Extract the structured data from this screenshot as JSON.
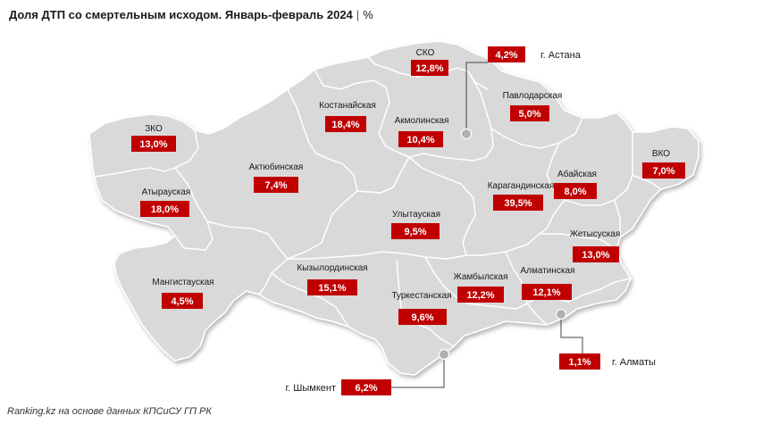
{
  "title": {
    "main": "Доля ДТП со смертельным исходом. Январь-февраль 2024",
    "separator": "|",
    "unit": "%"
  },
  "source": "Ranking.kz на основе данных КПСиСУ ГП РК",
  "colors": {
    "value_box": "#c00000",
    "map_fill": "#d9d9d9",
    "border": "#ffffff"
  },
  "regions": [
    {
      "name": "СКО",
      "value": "12,8%"
    },
    {
      "name": "ЗКО",
      "value": "13,0%"
    },
    {
      "name": "Костанайская",
      "value": "18,4%"
    },
    {
      "name": "Акмолинская",
      "value": "10,4%"
    },
    {
      "name": "Павлодарская",
      "value": "5,0%"
    },
    {
      "name": "ВКО",
      "value": "7,0%"
    },
    {
      "name": "Актюбинская",
      "value": "7,4%"
    },
    {
      "name": "Атырауская",
      "value": "18,0%"
    },
    {
      "name": "Карагандинская",
      "value": "39,5%"
    },
    {
      "name": "Абайская",
      "value": "8,0%"
    },
    {
      "name": "Улытауская",
      "value": "9,5%"
    },
    {
      "name": "Жетысуская",
      "value": "13,0%"
    },
    {
      "name": "Мангистауская",
      "value": "4,5%"
    },
    {
      "name": "Кызылординская",
      "value": "15,1%"
    },
    {
      "name": "Жамбылская",
      "value": "12,2%"
    },
    {
      "name": "Алматинская",
      "value": "12,1%"
    },
    {
      "name": "Туркестанская",
      "value": "9,6%"
    }
  ],
  "cities": [
    {
      "name": "г. Астана",
      "value": "4,2%"
    },
    {
      "name": "г. Алматы",
      "value": "1,1%"
    },
    {
      "name": "г. Шымкент",
      "value": "6,2%"
    }
  ]
}
